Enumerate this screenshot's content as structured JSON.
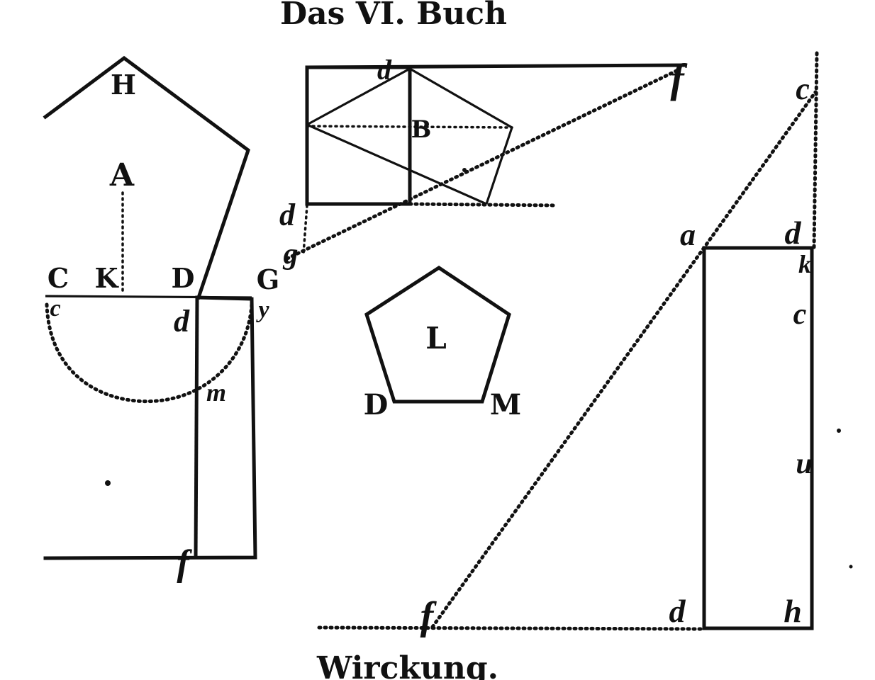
{
  "page": {
    "header": "Das VI. Buch",
    "footer": "Wirckung."
  },
  "figure_left": {
    "labels": {
      "H": "H",
      "A": "A",
      "C": "C",
      "K": "K",
      "D": "D",
      "G": "G",
      "c": "c",
      "d": "d",
      "y": "y",
      "m": "m",
      "f": "f"
    }
  },
  "figure_top": {
    "labels": {
      "d_top": "d",
      "B": "B",
      "f": "f",
      "d_bottom": "d",
      "g": "g"
    }
  },
  "figure_center": {
    "labels": {
      "L": "L",
      "D": "D",
      "M": "M"
    }
  },
  "figure_right": {
    "labels": {
      "c_top": "c",
      "a": "a",
      "d_top": "d",
      "k": "k",
      "c_mid": "c",
      "u": "u",
      "d_bottom": "d",
      "h": "h",
      "f": "f"
    }
  },
  "colors": {
    "ink": "#111111",
    "paper": "#ffffff"
  }
}
